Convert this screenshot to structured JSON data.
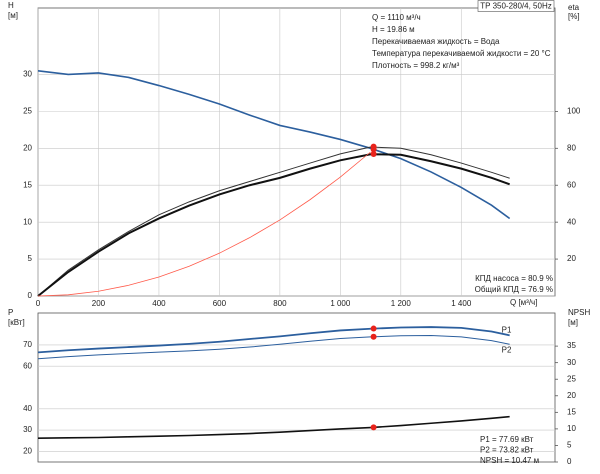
{
  "chart_data": [
    {
      "type": "line",
      "title": "TP 350-280/4, 50Hz",
      "info": [
        "Q = 1110 м³/ч",
        "H = 19.86 м",
        "Перекачиваемая жидкость = Вода",
        "Температура перекачиваемой жидкости = 20 °C",
        "Плотность = 998.2 кг/м³"
      ],
      "ylabel": "H",
      "yunit": "[м]",
      "y2label": "eta",
      "y2unit": "[%]",
      "xlabel": "Q [м³/ч]",
      "notes": [
        "КПД насоса = 80.9 %",
        "Общий КПД = 76.9 %"
      ],
      "xlim": [
        0,
        1710
      ],
      "ylim": [
        0,
        39
      ],
      "y2lim": [
        0,
        156
      ],
      "xticks": [
        0,
        200,
        400,
        600,
        800,
        {
          "value": 1000,
          "label": "1 000"
        },
        {
          "value": 1200,
          "label": "1 200"
        },
        {
          "value": 1400,
          "label": "1 400"
        }
      ],
      "yticks": [
        0,
        5,
        10,
        15,
        20,
        25,
        30
      ],
      "y2ticks": [
        20,
        40,
        60,
        80,
        100
      ],
      "grid": true,
      "x": [
        0,
        100,
        200,
        300,
        400,
        500,
        600,
        700,
        800,
        900,
        1000,
        1100,
        1200,
        1300,
        1400,
        1500,
        1560
      ],
      "series": [
        {
          "color": "#2c5f9e",
          "width": 1.6,
          "values": [
            30.5,
            30.0,
            30.2,
            29.6,
            28.5,
            27.3,
            26.0,
            24.5,
            23.1,
            22.2,
            21.2,
            20.0,
            18.6,
            16.8,
            14.7,
            12.3,
            10.5
          ]
        },
        {
          "color": "#333333",
          "width": 1.0,
          "axis": "y2",
          "values": [
            0,
            14,
            25,
            35,
            44,
            51,
            57,
            62,
            67,
            72,
            77,
            80.7,
            80,
            76.5,
            72,
            67,
            63.8
          ]
        },
        {
          "color": "#111111",
          "width": 2.0,
          "axis": "y2",
          "values": [
            0,
            13,
            24,
            34,
            42,
            49,
            55,
            60,
            64,
            69,
            73.5,
            76.8,
            76.5,
            73,
            69,
            64,
            60.5
          ]
        },
        {
          "color": "#ff5a4a",
          "width": 0.8,
          "values": [
            0,
            0.16,
            0.64,
            1.45,
            2.58,
            4.03,
            5.8,
            7.9,
            10.3,
            13.05,
            16.1,
            19.5,
            null,
            null,
            null,
            null,
            null
          ]
        }
      ],
      "points": [
        {
          "x": 1110,
          "y": 19.86
        },
        {
          "x": 1110,
          "y": 80.9,
          "axis": "y2"
        },
        {
          "x": 1110,
          "y": 76.9,
          "axis": "y2"
        }
      ],
      "point_color": "#e8231b"
    },
    {
      "type": "line",
      "ylabel": "P",
      "yunit": "[кВт]",
      "y2label": "NPSH",
      "y2unit": "[м]",
      "notes": [
        "P1 = 77.69 кВт",
        "P2 = 73.82 кВт",
        "NPSH = 10.47 м"
      ],
      "xlim": [
        0,
        1710
      ],
      "ylim": [
        15,
        85
      ],
      "y2lim": [
        0,
        45
      ],
      "yticks": [
        20,
        30,
        40,
        60,
        70
      ],
      "y2ticks": [
        0,
        5,
        10,
        15,
        20,
        25,
        30,
        35
      ],
      "grid": true,
      "x": [
        0,
        100,
        200,
        300,
        400,
        500,
        600,
        700,
        800,
        900,
        1000,
        1100,
        1200,
        1300,
        1400,
        1500,
        1560
      ],
      "series": [
        {
          "name": "P1",
          "color": "#2c5f9e",
          "width": 1.8,
          "values": [
            66.5,
            67.5,
            68.3,
            69,
            69.7,
            70.5,
            71.5,
            72.8,
            74,
            75.5,
            76.8,
            77.6,
            78.2,
            78.4,
            78,
            76.3,
            74.5
          ]
        },
        {
          "name": "P2",
          "color": "#2c5f9e",
          "width": 1.0,
          "values": [
            63.5,
            64.5,
            65.3,
            66,
            66.6,
            67.2,
            68,
            69,
            70.3,
            71.7,
            73,
            73.8,
            74.3,
            74.4,
            73.8,
            72,
            70.3
          ]
        },
        {
          "color": "#111111",
          "width": 1.6,
          "axis": "y2",
          "values": [
            7.2,
            7.3,
            7.4,
            7.6,
            7.8,
            8.0,
            8.3,
            8.6,
            9.0,
            9.5,
            10.0,
            10.4,
            11.0,
            11.7,
            12.4,
            13.2,
            13.7
          ]
        }
      ],
      "points": [
        {
          "x": 1110,
          "y": 77.69
        },
        {
          "x": 1110,
          "y": 73.82
        },
        {
          "x": 1110,
          "y": 10.47,
          "axis": "y2"
        }
      ],
      "point_color": "#e8231b"
    }
  ]
}
